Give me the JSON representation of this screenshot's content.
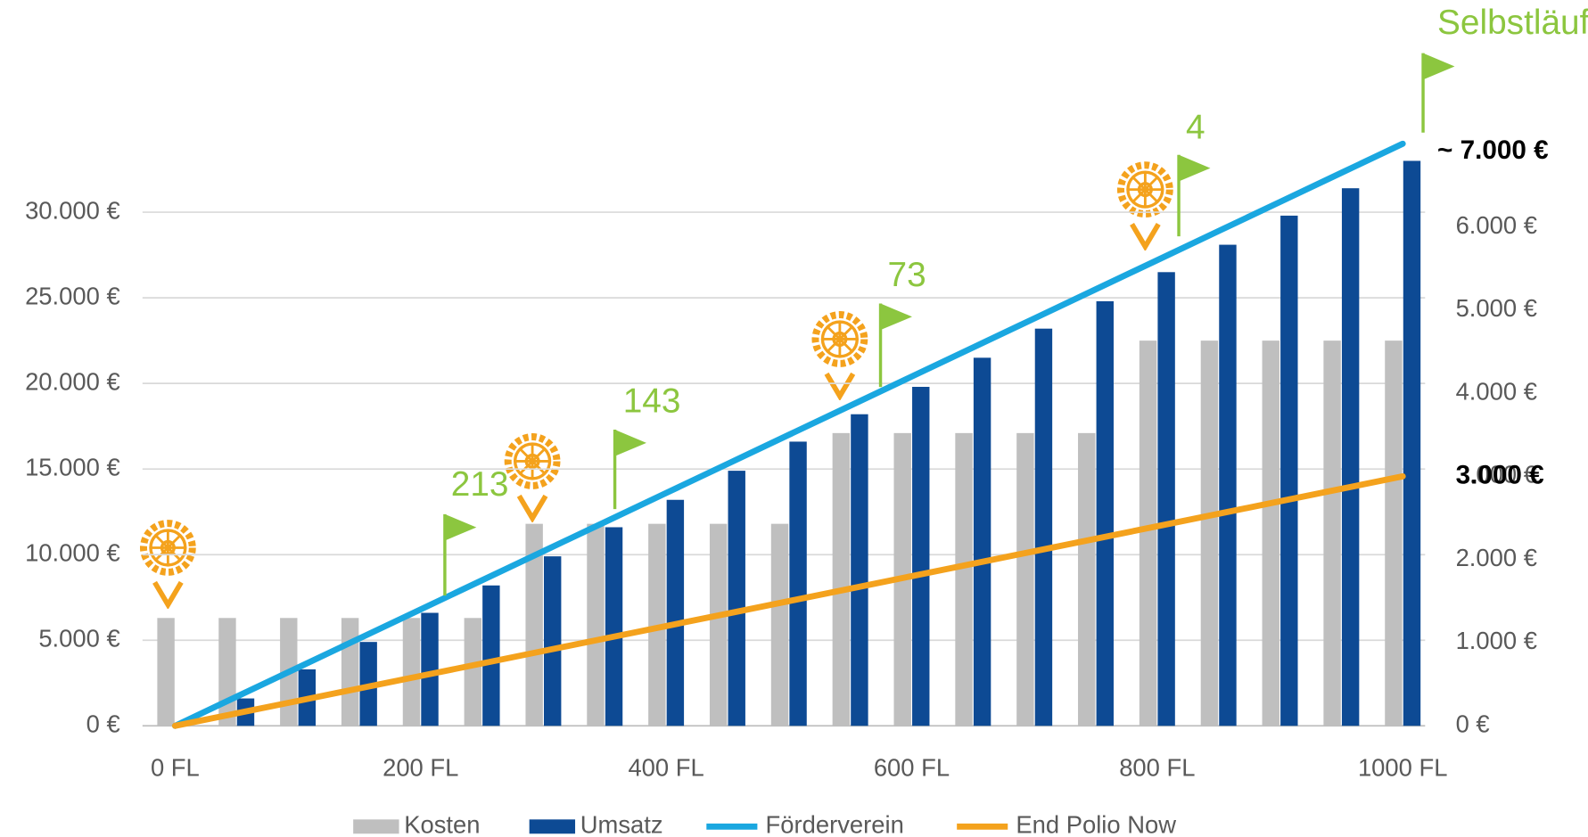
{
  "chart_data": {
    "type": "bar",
    "categories": [
      "0 FL",
      null,
      null,
      null,
      "200 FL",
      null,
      null,
      null,
      "400 FL",
      null,
      null,
      null,
      "600 FL",
      null,
      null,
      null,
      "800 FL",
      null,
      null,
      null,
      "1000 FL"
    ],
    "series": [
      {
        "name": "Kosten",
        "type": "bar",
        "axis": "y",
        "color": "#bfbfbf",
        "values": [
          6300,
          6300,
          6300,
          6300,
          6300,
          6300,
          11800,
          11800,
          11800,
          11800,
          11800,
          17100,
          17100,
          17100,
          17100,
          17100,
          22500,
          22500,
          22500,
          22500,
          22500
        ]
      },
      {
        "name": "Umsatz",
        "type": "bar",
        "axis": "y",
        "color": "#0d4a94",
        "values": [
          0,
          1600,
          3300,
          4900,
          6600,
          8200,
          9900,
          11600,
          13200,
          14900,
          16600,
          18200,
          19800,
          21500,
          23200,
          24800,
          26500,
          28100,
          29800,
          31400,
          33000
        ]
      },
      {
        "name": "Förderverein",
        "type": "line",
        "axis": "y2",
        "color": "#1aa7e0",
        "values": [
          0,
          350,
          700,
          1050,
          1400,
          1750,
          2100,
          2450,
          2800,
          3150,
          3500,
          3850,
          4200,
          4550,
          4900,
          5250,
          5600,
          5950,
          6300,
          6650,
          7000
        ]
      },
      {
        "name": "End Polio Now",
        "type": "line",
        "axis": "y2",
        "color": "#f4a21d",
        "values": [
          0,
          150,
          300,
          450,
          600,
          750,
          900,
          1050,
          1200,
          1350,
          1500,
          1650,
          1800,
          1950,
          2100,
          2250,
          2400,
          2550,
          2700,
          2850,
          3000
        ]
      }
    ],
    "ylim": [
      0,
      34000
    ],
    "yticks": [
      {
        "value": 0,
        "label": "0 €"
      },
      {
        "value": 5000,
        "label": "5.000 €"
      },
      {
        "value": 10000,
        "label": "10.000 €"
      },
      {
        "value": 15000,
        "label": "15.000 €"
      },
      {
        "value": 20000,
        "label": "20.000 €"
      },
      {
        "value": 25000,
        "label": "25.000 €"
      },
      {
        "value": 30000,
        "label": "30.000 €"
      }
    ],
    "y2lim": [
      0,
      7000
    ],
    "y2ticks": [
      {
        "value": 0,
        "label": "0 €"
      },
      {
        "value": 1000,
        "label": "1.000 €"
      },
      {
        "value": 2000,
        "label": "2.000 €"
      },
      {
        "value": 3000,
        "label": "3.000 €"
      },
      {
        "value": 4000,
        "label": "4.000 €"
      },
      {
        "value": 5000,
        "label": "5.000 €"
      },
      {
        "value": 6000,
        "label": "6.000 €"
      }
    ],
    "grid": true,
    "legend": "bottom",
    "flags": [
      "213",
      "143",
      "73",
      "4",
      "Selbstläufer"
    ],
    "line_end_labels": [
      "~ 7.000 €",
      "3.000 €"
    ]
  }
}
